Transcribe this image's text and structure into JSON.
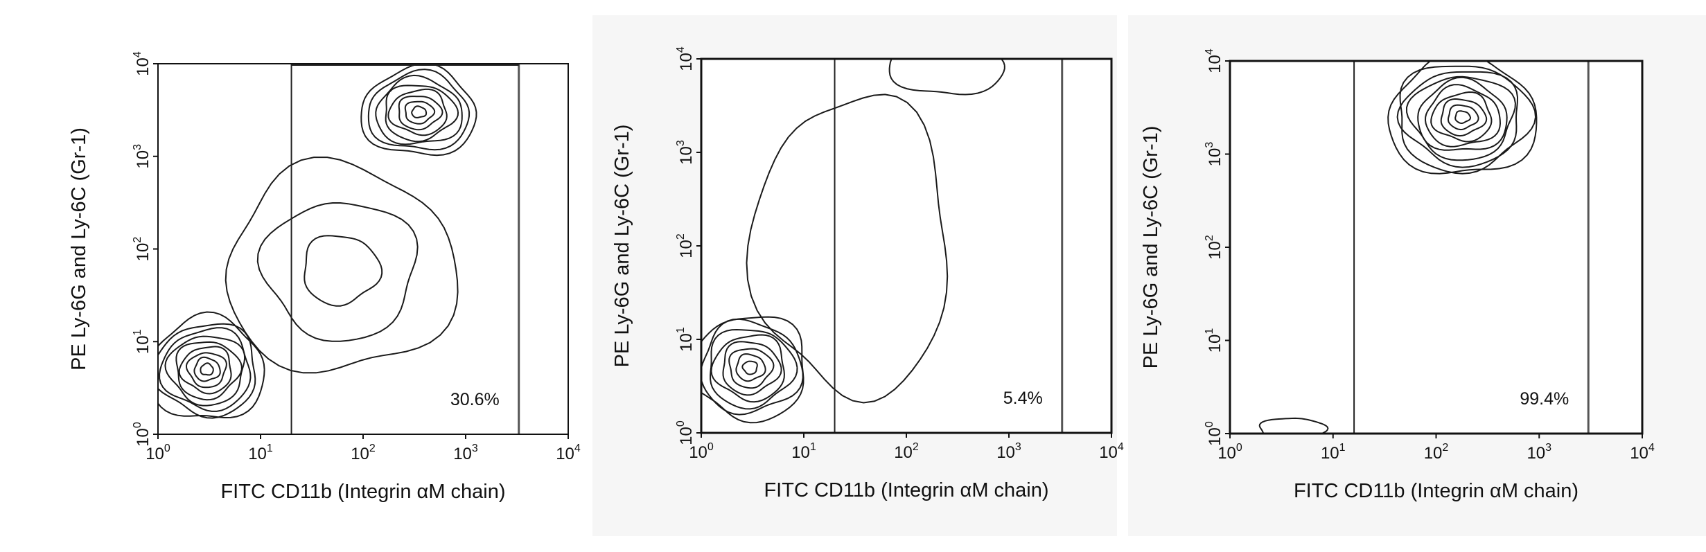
{
  "chart_data": [
    {
      "type": "contour",
      "xlabel": "FITC CD11b (Integrin αM chain)",
      "ylabel": "PE Ly-6G and Ly-6C (Gr-1)",
      "xscale": "log",
      "yscale": "log",
      "xlim": [
        1,
        10000
      ],
      "ylim": [
        1,
        10000
      ],
      "x_ticks": [
        {
          "base": "10",
          "exp": "0"
        },
        {
          "base": "10",
          "exp": "1"
        },
        {
          "base": "10",
          "exp": "2"
        },
        {
          "base": "10",
          "exp": "3"
        },
        {
          "base": "10",
          "exp": "4"
        }
      ],
      "y_ticks": [
        {
          "base": "10",
          "exp": "0"
        },
        {
          "base": "10",
          "exp": "1"
        },
        {
          "base": "10",
          "exp": "2"
        },
        {
          "base": "10",
          "exp": "3"
        },
        {
          "base": "10",
          "exp": "4"
        }
      ],
      "gate": {
        "x_min": 20,
        "x_max": 3300,
        "percent_label": "30.6%"
      },
      "populations": [
        {
          "center": [
            3,
            5
          ],
          "spread": [
            0.35,
            0.35
          ],
          "levels": 9
        },
        {
          "center": [
            350,
            3000
          ],
          "spread": [
            0.35,
            0.3
          ],
          "levels": 8
        },
        {
          "center": [
            60,
            60
          ],
          "spread": [
            0.7,
            0.7
          ],
          "levels": 3
        }
      ],
      "background_color": "#ffffff"
    },
    {
      "type": "contour",
      "xlabel": "FITC CD11b (Integrin αM chain)",
      "ylabel": "PE Ly-6G and Ly-6C (Gr-1)",
      "xscale": "log",
      "yscale": "log",
      "xlim": [
        1,
        10000
      ],
      "ylim": [
        1,
        10000
      ],
      "x_ticks": [
        {
          "base": "10",
          "exp": "0"
        },
        {
          "base": "10",
          "exp": "1"
        },
        {
          "base": "10",
          "exp": "2"
        },
        {
          "base": "10",
          "exp": "3"
        },
        {
          "base": "10",
          "exp": "4"
        }
      ],
      "y_ticks": [
        {
          "base": "10",
          "exp": "0"
        },
        {
          "base": "10",
          "exp": "1"
        },
        {
          "base": "10",
          "exp": "2"
        },
        {
          "base": "10",
          "exp": "3"
        },
        {
          "base": "10",
          "exp": "4"
        }
      ],
      "gate": {
        "x_min": 20,
        "x_max": 3300,
        "percent_label": "5.4%"
      },
      "populations": [
        {
          "center": [
            3,
            5
          ],
          "spread": [
            0.35,
            0.35
          ],
          "levels": 8
        },
        {
          "center": [
            30,
            100
          ],
          "spread": [
            0.6,
            1.0
          ],
          "levels": 1
        },
        {
          "center": [
            250,
            8500
          ],
          "spread": [
            0.35,
            0.2
          ],
          "levels": 1
        }
      ],
      "background_color": "#f6f6f6"
    },
    {
      "type": "contour",
      "xlabel": "FITC CD11b (Integrin αM chain)",
      "ylabel": "PE Ly-6G and Ly-6C (Gr-1)",
      "xscale": "log",
      "yscale": "log",
      "xlim": [
        1,
        10000
      ],
      "ylim": [
        1,
        10000
      ],
      "x_ticks": [
        {
          "base": "10",
          "exp": "0"
        },
        {
          "base": "10",
          "exp": "1"
        },
        {
          "base": "10",
          "exp": "2"
        },
        {
          "base": "10",
          "exp": "3"
        },
        {
          "base": "10",
          "exp": "4"
        }
      ],
      "y_ticks": [
        {
          "base": "10",
          "exp": "0"
        },
        {
          "base": "10",
          "exp": "1"
        },
        {
          "base": "10",
          "exp": "2"
        },
        {
          "base": "10",
          "exp": "3"
        },
        {
          "base": "10",
          "exp": "4"
        }
      ],
      "gate": {
        "x_min": 16,
        "x_max": 3000,
        "percent_label": "99.4%"
      },
      "populations": [
        {
          "center": [
            180,
            2500
          ],
          "spread": [
            0.45,
            0.4
          ],
          "levels": 10
        },
        {
          "center": [
            4,
            1.1
          ],
          "spread": [
            0.2,
            0.08
          ],
          "levels": 1
        }
      ],
      "background_color": "#f6f6f6"
    }
  ]
}
